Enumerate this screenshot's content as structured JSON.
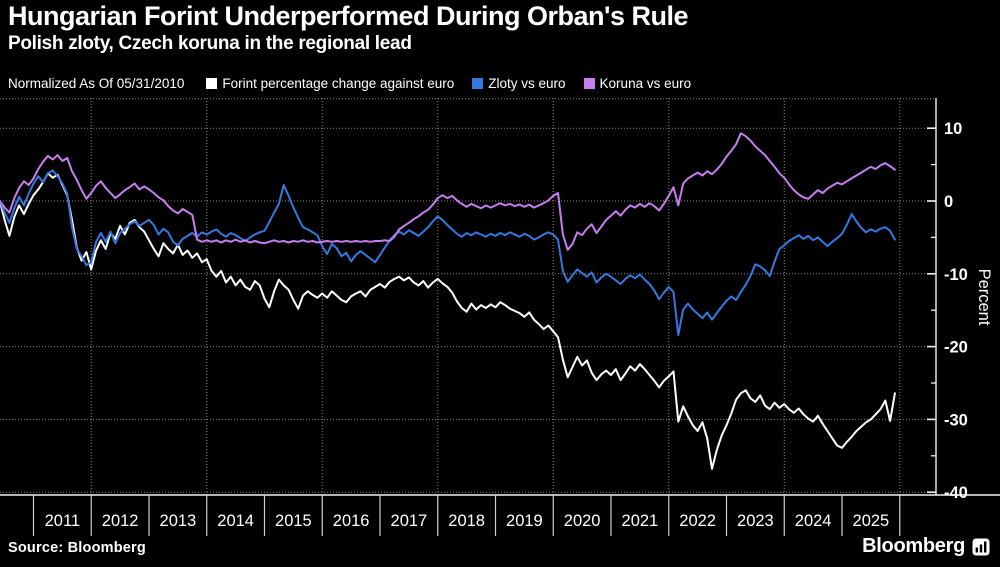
{
  "header": {
    "title": "Hungarian Forint Underperformed During Orban's Rule",
    "subtitle": "Polish zloty, Czech koruna in the regional lead"
  },
  "legend": {
    "note": "Normalized As Of 05/31/2010",
    "items": [
      {
        "label": "Forint percentage change against euro",
        "color": "#ffffff"
      },
      {
        "label": "Zloty vs euro",
        "color": "#3579e0"
      },
      {
        "label": "Koruna vs euro",
        "color": "#c77ef0"
      }
    ]
  },
  "footer": {
    "source": "Source: Bloomberg",
    "brand": "Bloomberg"
  },
  "chart_data": {
    "type": "line",
    "title": "Hungarian Forint Underperformed During Orban's Rule",
    "subtitle": "Polish zloty, Czech koruna in the regional lead",
    "normalized_as_of": "05/31/2010",
    "ylabel": "Percent",
    "y_ticks": [
      10,
      0,
      -10,
      -20,
      -30,
      -40
    ],
    "y_minor_ticks": [
      5,
      -5,
      -15,
      -25,
      -35
    ],
    "ylim": [
      -41.5,
      14
    ],
    "grid": "dotted",
    "legend_position": "top",
    "x_start_year": 2010.4167,
    "x_step_years": 0.08333,
    "x_tick_years": [
      2011,
      2012,
      2013,
      2014,
      2015,
      2016,
      2017,
      2018,
      2019,
      2020,
      2021,
      2022,
      2023,
      2024,
      2025
    ],
    "grid_years": [
      2012,
      2014,
      2016,
      2018,
      2020,
      2022,
      2024,
      2026
    ],
    "series": [
      {
        "name": "Forint percentage change against euro",
        "color": "#ffffff",
        "values": [
          0,
          -2.6,
          -4.8,
          -2.2,
          -0.6,
          -1.8,
          -0.4,
          0.8,
          1.6,
          2.6,
          3.8,
          3.2,
          3.6,
          2.2,
          0.8,
          -2.6,
          -6.4,
          -8.2,
          -7.0,
          -9.4,
          -6.8,
          -5.4,
          -6.6,
          -4.4,
          -5.2,
          -3.4,
          -4.6,
          -3.0,
          -2.6,
          -3.6,
          -4.2,
          -5.4,
          -6.6,
          -7.6,
          -5.8,
          -6.6,
          -7.2,
          -6.0,
          -7.4,
          -6.8,
          -7.8,
          -7.2,
          -8.4,
          -8.0,
          -9.6,
          -10.4,
          -9.6,
          -11.2,
          -10.4,
          -11.6,
          -10.8,
          -11.8,
          -12.2,
          -11.0,
          -11.6,
          -13.4,
          -14.6,
          -12.4,
          -10.8,
          -11.6,
          -12.2,
          -13.6,
          -14.8,
          -13.0,
          -12.4,
          -12.9,
          -13.3,
          -12.7,
          -13.3,
          -12.4,
          -13.0,
          -13.6,
          -13.9,
          -13.1,
          -12.7,
          -12.4,
          -13.1,
          -12.2,
          -11.8,
          -11.4,
          -11.9,
          -11.1,
          -10.7,
          -10.4,
          -10.9,
          -10.5,
          -11.2,
          -11.6,
          -11.0,
          -11.9,
          -11.2,
          -10.7,
          -11.3,
          -11.8,
          -12.6,
          -13.8,
          -14.7,
          -15.2,
          -14.1,
          -14.9,
          -14.3,
          -14.7,
          -14.2,
          -14.6,
          -13.9,
          -14.3,
          -14.8,
          -15.1,
          -15.4,
          -15.9,
          -15.3,
          -16.3,
          -16.9,
          -17.6,
          -17.1,
          -17.9,
          -18.7,
          -21.8,
          -24.2,
          -22.8,
          -21.4,
          -22.6,
          -21.9,
          -23.6,
          -24.6,
          -23.8,
          -23.3,
          -23.9,
          -23.1,
          -24.6,
          -23.7,
          -22.7,
          -23.3,
          -22.4,
          -23.1,
          -23.9,
          -24.7,
          -25.6,
          -24.7,
          -24.1,
          -23.4,
          -30.3,
          -28.2,
          -29.6,
          -30.8,
          -31.6,
          -30.4,
          -32.6,
          -36.8,
          -34.2,
          -32.2,
          -30.8,
          -29.2,
          -27.3,
          -26.4,
          -26.0,
          -27.1,
          -27.6,
          -26.7,
          -28.1,
          -28.6,
          -27.7,
          -28.4,
          -27.9,
          -28.6,
          -29.1,
          -28.5,
          -29.3,
          -29.9,
          -30.3,
          -29.5,
          -30.6,
          -31.6,
          -32.6,
          -33.6,
          -33.9,
          -33.1,
          -32.4,
          -31.6,
          -31.0,
          -30.4,
          -30.0,
          -29.3,
          -28.6,
          -27.4,
          -30.2,
          -26.4
        ]
      },
      {
        "name": "Zloty vs euro",
        "color": "#3579e0",
        "values": [
          0,
          -1.6,
          -3.0,
          -1.0,
          0.6,
          -0.6,
          1.0,
          2.4,
          3.4,
          2.6,
          3.8,
          4.2,
          3.4,
          2.4,
          1.0,
          -3.6,
          -6.6,
          -7.6,
          -8.8,
          -8.4,
          -5.6,
          -4.4,
          -5.6,
          -4.2,
          -5.8,
          -4.4,
          -3.8,
          -3.2,
          -2.8,
          -3.4,
          -3.0,
          -2.6,
          -3.3,
          -4.6,
          -3.8,
          -4.3,
          -5.6,
          -6.1,
          -5.2,
          -4.8,
          -4.4,
          -4.9,
          -4.3,
          -4.6,
          -4.2,
          -3.9,
          -4.5,
          -4.9,
          -4.4,
          -4.7,
          -5.1,
          -5.5,
          -5.0,
          -4.6,
          -4.3,
          -4.1,
          -2.9,
          -1.6,
          -0.4,
          2.2,
          0.7,
          -0.9,
          -2.3,
          -3.6,
          -3.9,
          -4.3,
          -4.7,
          -6.2,
          -7.3,
          -5.9,
          -6.5,
          -7.6,
          -7.1,
          -8.3,
          -7.4,
          -6.9,
          -7.4,
          -7.9,
          -8.4,
          -7.4,
          -6.4,
          -5.4,
          -4.7,
          -4.2,
          -4.6,
          -4.0,
          -4.4,
          -4.8,
          -4.2,
          -3.6,
          -2.8,
          -2.1,
          -2.6,
          -3.3,
          -3.9,
          -4.5,
          -4.9,
          -4.4,
          -4.7,
          -4.3,
          -4.6,
          -4.9,
          -4.5,
          -4.8,
          -4.4,
          -4.7,
          -4.3,
          -4.6,
          -4.9,
          -4.5,
          -4.8,
          -5.3,
          -5.0,
          -4.6,
          -4.3,
          -4.6,
          -5.3,
          -9.6,
          -11.1,
          -10.2,
          -9.4,
          -9.9,
          -10.4,
          -9.8,
          -11.2,
          -10.5,
          -10.0,
          -10.4,
          -10.9,
          -11.4,
          -10.7,
          -10.2,
          -10.6,
          -10.1,
          -10.8,
          -11.4,
          -12.3,
          -13.5,
          -12.6,
          -11.8,
          -12.5,
          -18.4,
          -14.9,
          -14.1,
          -14.9,
          -15.5,
          -16.1,
          -15.3,
          -16.3,
          -15.4,
          -14.5,
          -13.7,
          -13.1,
          -13.6,
          -12.5,
          -11.5,
          -10.3,
          -8.7,
          -9.0,
          -9.5,
          -10.3,
          -8.3,
          -6.6,
          -6.1,
          -5.5,
          -5.1,
          -4.7,
          -5.2,
          -4.8,
          -5.4,
          -5.0,
          -5.6,
          -6.2,
          -5.6,
          -5.1,
          -4.5,
          -3.3,
          -1.8,
          -2.8,
          -3.7,
          -4.3,
          -3.9,
          -4.2,
          -3.8,
          -3.6,
          -4.1,
          -5.3
        ]
      },
      {
        "name": "Koruna vs euro",
        "color": "#c77ef0",
        "values": [
          0,
          -0.9,
          -1.6,
          0.4,
          1.8,
          2.7,
          2.2,
          3.1,
          4.4,
          5.4,
          6.2,
          5.7,
          6.3,
          5.5,
          5.9,
          4.1,
          2.9,
          1.5,
          0.3,
          1.1,
          2.1,
          2.7,
          1.8,
          1.1,
          0.4,
          0.9,
          1.5,
          1.9,
          2.4,
          1.6,
          2.0,
          1.6,
          1.1,
          0.5,
          0.1,
          -0.7,
          -1.3,
          -1.7,
          -1.1,
          -1.5,
          -1.9,
          -5.3,
          -5.6,
          -5.4,
          -5.6,
          -5.4,
          -5.7,
          -5.4,
          -5.6,
          -5.3,
          -5.6,
          -5.4,
          -5.7,
          -5.5,
          -5.7,
          -5.8,
          -5.6,
          -5.4,
          -5.6,
          -5.5,
          -5.7,
          -5.5,
          -5.6,
          -5.4,
          -5.6,
          -5.5,
          -5.7,
          -5.6,
          -5.5,
          -5.6,
          -5.5,
          -5.6,
          -5.5,
          -5.6,
          -5.5,
          -5.6,
          -5.5,
          -5.6,
          -5.5,
          -5.5,
          -5.4,
          -5.5,
          -4.9,
          -3.9,
          -3.4,
          -3.0,
          -2.5,
          -2.1,
          -1.6,
          -1.2,
          -0.5,
          0.4,
          0.8,
          0.4,
          0.7,
          0.1,
          -0.4,
          -0.8,
          -0.4,
          -0.7,
          -1.0,
          -0.6,
          -0.9,
          -0.6,
          -0.3,
          -0.6,
          -0.4,
          -0.7,
          -0.5,
          -0.8,
          -0.5,
          -0.9,
          -0.6,
          -0.3,
          0.1,
          0.7,
          1.1,
          -4.6,
          -6.7,
          -5.9,
          -4.3,
          -4.7,
          -3.8,
          -3.2,
          -4.4,
          -3.5,
          -2.6,
          -2.0,
          -1.4,
          -2.0,
          -1.2,
          -0.6,
          -0.9,
          -0.4,
          -0.8,
          -0.3,
          -0.7,
          -1.3,
          -0.4,
          0.7,
          1.9,
          -0.6,
          2.4,
          3.1,
          3.5,
          3.9,
          3.5,
          4.1,
          3.7,
          4.3,
          5.1,
          6.1,
          6.9,
          7.8,
          9.3,
          8.9,
          8.3,
          7.5,
          6.9,
          6.3,
          5.5,
          4.7,
          3.8,
          3.2,
          2.3,
          1.5,
          0.9,
          0.5,
          0.3,
          0.9,
          1.5,
          1.1,
          1.7,
          2.1,
          2.5,
          2.3,
          2.7,
          3.1,
          3.5,
          3.9,
          4.3,
          4.7,
          4.4,
          4.9,
          5.2,
          4.8,
          4.3
        ]
      }
    ]
  }
}
